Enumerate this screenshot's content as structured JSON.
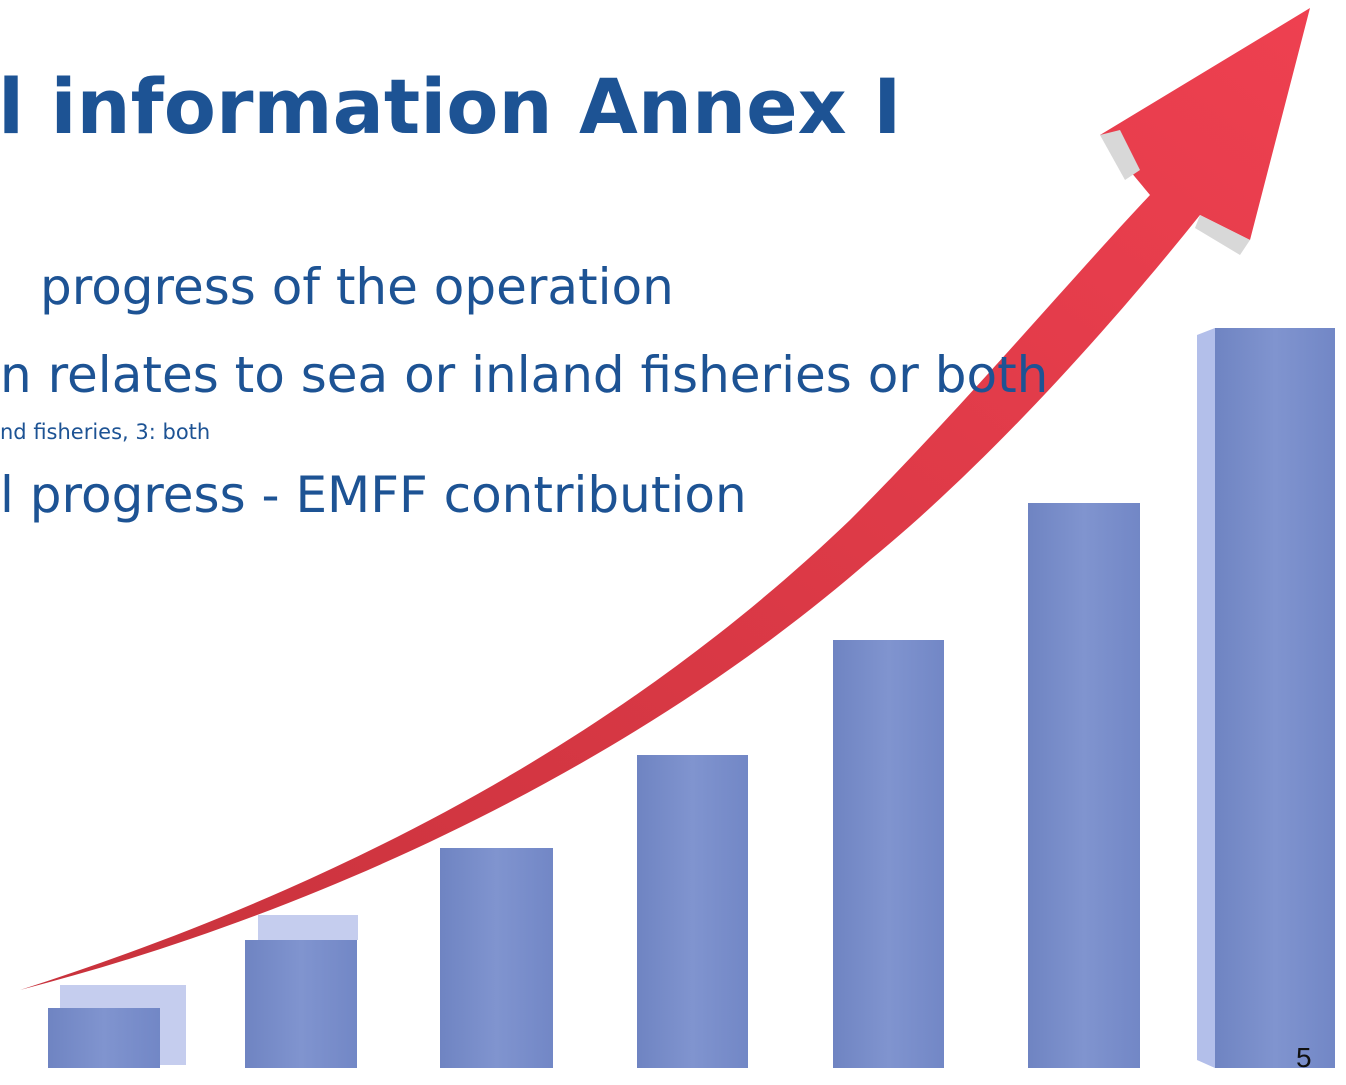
{
  "slide": {
    "title": "l information Annex I",
    "lines": [
      "progress of the operation",
      "n relates to sea or inland fisheries or both",
      "nd fisheries, 3: both",
      "l progress - EMFF contribution"
    ],
    "page_number": "5"
  }
}
